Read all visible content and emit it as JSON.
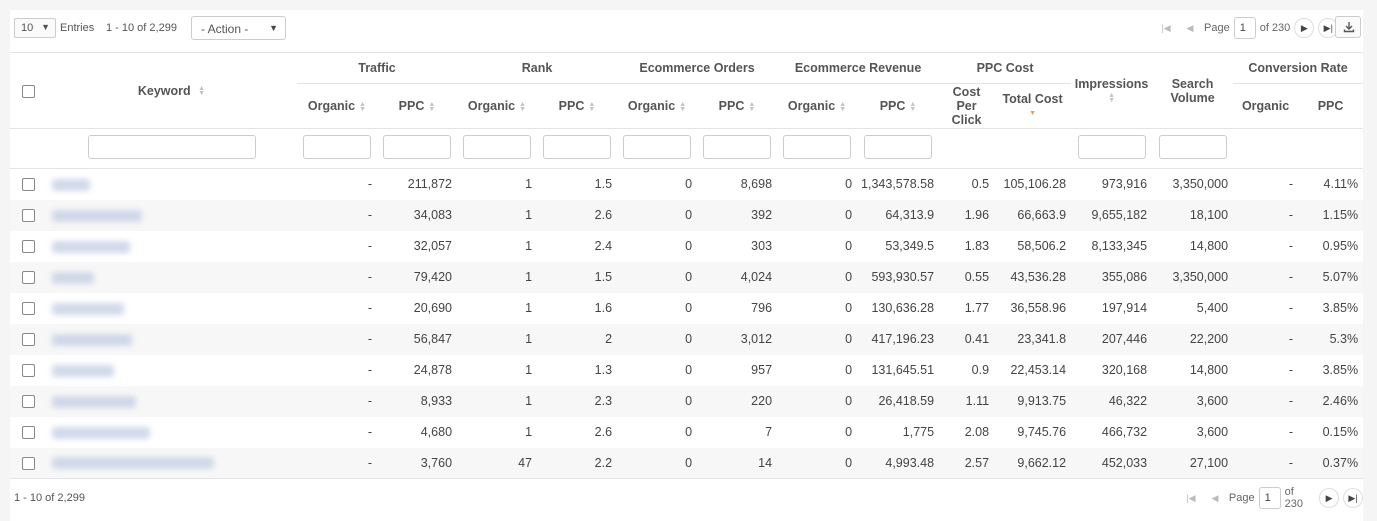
{
  "toolbar": {
    "per_page": "10",
    "entries_label": "Entries",
    "range_label": "1 - 10 of 2,299",
    "action_label": "- Action -",
    "page_label": "Page",
    "page_value": "1",
    "of_label": "of 230"
  },
  "table": {
    "headers": {
      "keyword": "Keyword",
      "traffic": "Traffic",
      "rank": "Rank",
      "ecommerce_orders": "Ecommerce Orders",
      "ecommerce_revenue": "Ecommerce Revenue",
      "ppc_cost": "PPC Cost",
      "impressions": "Impressions",
      "search_volume": "Search Volume",
      "conversion_rate": "Conversion Rate",
      "organic": "Organic",
      "ppc": "PPC",
      "cost_per_click": "Cost Per Click",
      "total_cost": "Total Cost"
    },
    "rows": [
      [
        "-",
        "211,872",
        "1",
        "1.5",
        "0",
        "8,698",
        "0",
        "1,343,578.58",
        "0.5",
        "105,106.28",
        "973,916",
        "3,350,000",
        "-",
        "4.11%"
      ],
      [
        "-",
        "34,083",
        "1",
        "2.6",
        "0",
        "392",
        "0",
        "64,313.9",
        "1.96",
        "66,663.9",
        "9,655,182",
        "18,100",
        "-",
        "1.15%"
      ],
      [
        "-",
        "32,057",
        "1",
        "2.4",
        "0",
        "303",
        "0",
        "53,349.5",
        "1.83",
        "58,506.2",
        "8,133,345",
        "14,800",
        "-",
        "0.95%"
      ],
      [
        "-",
        "79,420",
        "1",
        "1.5",
        "0",
        "4,024",
        "0",
        "593,930.57",
        "0.55",
        "43,536.28",
        "355,086",
        "3,350,000",
        "-",
        "5.07%"
      ],
      [
        "-",
        "20,690",
        "1",
        "1.6",
        "0",
        "796",
        "0",
        "130,636.28",
        "1.77",
        "36,558.96",
        "197,914",
        "5,400",
        "-",
        "3.85%"
      ],
      [
        "-",
        "56,847",
        "1",
        "2",
        "0",
        "3,012",
        "0",
        "417,196.23",
        "0.41",
        "23,341.8",
        "207,446",
        "22,200",
        "-",
        "5.3%"
      ],
      [
        "-",
        "24,878",
        "1",
        "1.3",
        "0",
        "957",
        "0",
        "131,645.51",
        "0.9",
        "22,453.14",
        "320,168",
        "14,800",
        "-",
        "3.85%"
      ],
      [
        "-",
        "8,933",
        "1",
        "2.3",
        "0",
        "220",
        "0",
        "26,418.59",
        "1.11",
        "9,913.75",
        "46,322",
        "3,600",
        "-",
        "2.46%"
      ],
      [
        "-",
        "4,680",
        "1",
        "2.6",
        "0",
        "7",
        "0",
        "1,775",
        "2.08",
        "9,745.76",
        "466,732",
        "3,600",
        "-",
        "0.15%"
      ],
      [
        "-",
        "3,760",
        "47",
        "2.2",
        "0",
        "14",
        "0",
        "4,993.48",
        "2.57",
        "9,662.12",
        "452,033",
        "27,100",
        "-",
        "0.37%"
      ]
    ]
  },
  "footer": {
    "range_label": "1 - 10 of 2,299",
    "page_label": "Page",
    "page_value": "1",
    "of_label": "of 230"
  },
  "icons": {
    "first": "first-page-icon",
    "prev": "previous-page-icon",
    "next": "next-page-icon",
    "last": "last-page-icon",
    "download": "download-icon",
    "sort": "sort-icon"
  },
  "colors": {
    "sort_active": "#f0a040"
  }
}
